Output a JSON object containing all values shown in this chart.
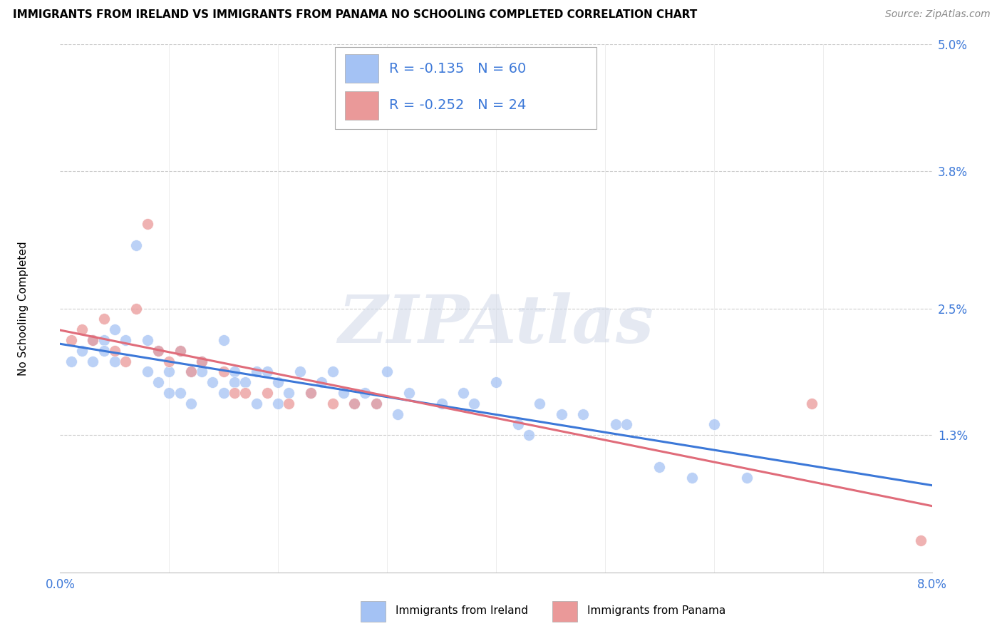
{
  "title": "IMMIGRANTS FROM IRELAND VS IMMIGRANTS FROM PANAMA NO SCHOOLING COMPLETED CORRELATION CHART",
  "source": "Source: ZipAtlas.com",
  "ylabel": "No Schooling Completed",
  "xlim": [
    0.0,
    0.08
  ],
  "ylim": [
    0.0,
    0.05
  ],
  "xtick_positions": [
    0.0,
    0.08
  ],
  "xtick_labels": [
    "0.0%",
    "8.0%"
  ],
  "ytick_positions": [
    0.013,
    0.025,
    0.038,
    0.05
  ],
  "ytick_labels": [
    "1.3%",
    "2.5%",
    "3.8%",
    "5.0%"
  ],
  "grid_lines_x": [
    0.01,
    0.02,
    0.03,
    0.04,
    0.05,
    0.06,
    0.07
  ],
  "ireland_color": "#a4c2f4",
  "panama_color": "#ea9999",
  "ireland_line_color": "#3c78d8",
  "panama_line_color": "#e06c7a",
  "legend_text_color": "#3c78d8",
  "legend_ireland_R": "-0.135",
  "legend_ireland_N": "60",
  "legend_panama_R": "-0.252",
  "legend_panama_N": "24",
  "watermark": "ZIPAtlas",
  "ireland_x": [
    0.001,
    0.002,
    0.003,
    0.003,
    0.004,
    0.004,
    0.005,
    0.005,
    0.006,
    0.007,
    0.008,
    0.008,
    0.009,
    0.009,
    0.01,
    0.01,
    0.011,
    0.011,
    0.012,
    0.012,
    0.013,
    0.013,
    0.014,
    0.015,
    0.015,
    0.016,
    0.016,
    0.017,
    0.018,
    0.018,
    0.019,
    0.02,
    0.02,
    0.021,
    0.022,
    0.023,
    0.024,
    0.025,
    0.026,
    0.027,
    0.028,
    0.029,
    0.03,
    0.031,
    0.032,
    0.035,
    0.037,
    0.038,
    0.04,
    0.042,
    0.043,
    0.044,
    0.046,
    0.048,
    0.051,
    0.052,
    0.055,
    0.058,
    0.06,
    0.063
  ],
  "ireland_y": [
    0.02,
    0.021,
    0.022,
    0.02,
    0.022,
    0.021,
    0.023,
    0.02,
    0.022,
    0.031,
    0.019,
    0.022,
    0.018,
    0.021,
    0.019,
    0.017,
    0.021,
    0.017,
    0.016,
    0.019,
    0.02,
    0.019,
    0.018,
    0.017,
    0.022,
    0.019,
    0.018,
    0.018,
    0.019,
    0.016,
    0.019,
    0.016,
    0.018,
    0.017,
    0.019,
    0.017,
    0.018,
    0.019,
    0.017,
    0.016,
    0.017,
    0.016,
    0.019,
    0.015,
    0.017,
    0.016,
    0.017,
    0.016,
    0.018,
    0.014,
    0.013,
    0.016,
    0.015,
    0.015,
    0.014,
    0.014,
    0.01,
    0.009,
    0.014,
    0.009
  ],
  "panama_x": [
    0.001,
    0.002,
    0.003,
    0.004,
    0.005,
    0.006,
    0.007,
    0.008,
    0.009,
    0.01,
    0.011,
    0.012,
    0.013,
    0.015,
    0.016,
    0.017,
    0.019,
    0.021,
    0.023,
    0.025,
    0.027,
    0.029,
    0.069,
    0.079
  ],
  "panama_y": [
    0.022,
    0.023,
    0.022,
    0.024,
    0.021,
    0.02,
    0.025,
    0.033,
    0.021,
    0.02,
    0.021,
    0.019,
    0.02,
    0.019,
    0.017,
    0.017,
    0.017,
    0.016,
    0.017,
    0.016,
    0.016,
    0.016,
    0.016,
    0.003
  ],
  "grid_color": "#cccccc",
  "background_color": "#ffffff",
  "title_fontsize": 11,
  "axis_label_fontsize": 11,
  "tick_fontsize": 12,
  "legend_fontsize": 14,
  "source_fontsize": 10
}
